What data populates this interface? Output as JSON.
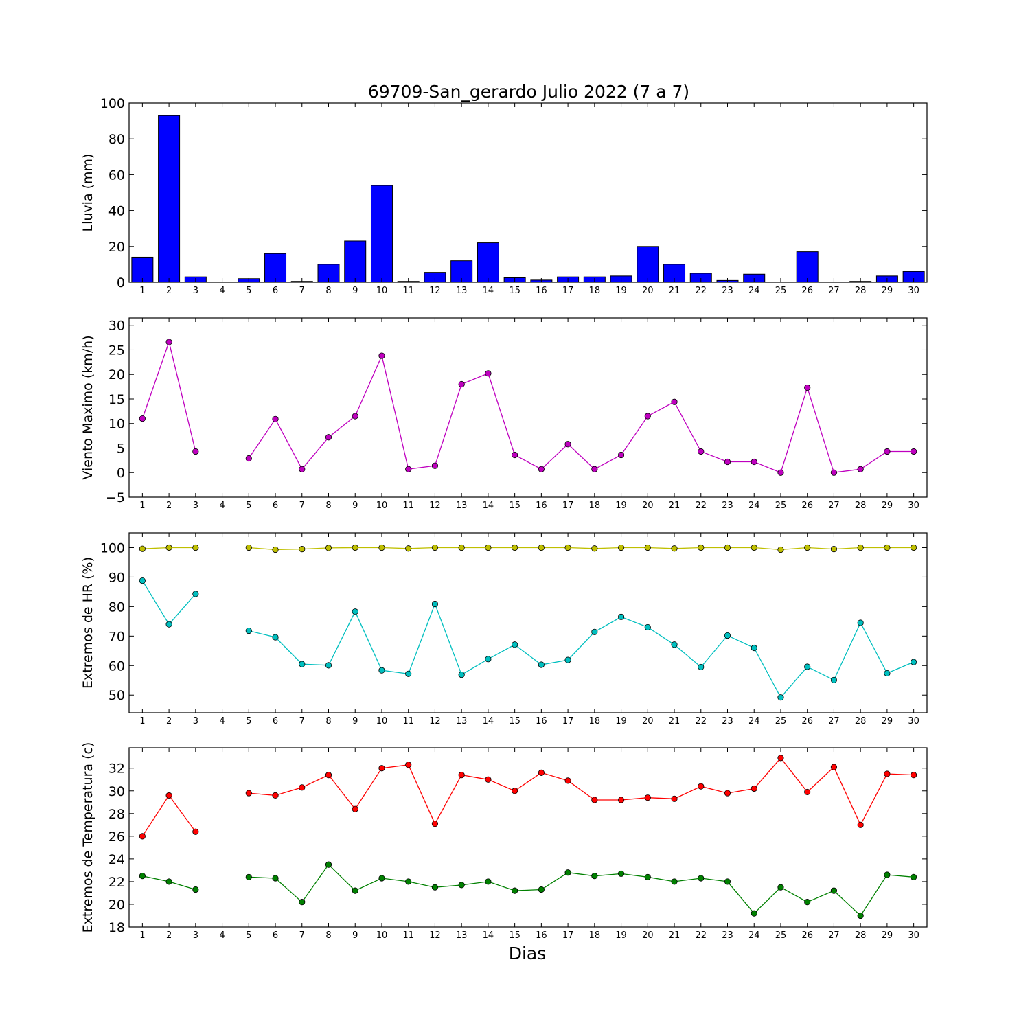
{
  "title": "69709-San_gerardo Julio 2022  (7 a 7)",
  "xlabel": "Dias",
  "days": [
    1,
    2,
    3,
    4,
    5,
    6,
    7,
    8,
    9,
    10,
    11,
    12,
    13,
    14,
    15,
    16,
    17,
    18,
    19,
    20,
    21,
    22,
    23,
    24,
    25,
    26,
    27,
    28,
    29,
    30
  ],
  "colors": {
    "rain": "#0000ff",
    "wind": "#bf00bf",
    "hr_max": "#bfbf00",
    "hr_min": "#00bfbf",
    "t_max": "#ff0000",
    "t_min": "#008000"
  },
  "chart_data": [
    {
      "type": "bar",
      "ylabel": "Lluvia (mm)",
      "ylim": [
        0,
        100
      ],
      "yticks": [
        0,
        20,
        40,
        60,
        80,
        100
      ],
      "series": [
        {
          "values": [
            14,
            93,
            3,
            0,
            2,
            16,
            0.5,
            10,
            23,
            54,
            0.5,
            5.5,
            12,
            22,
            2.5,
            1.2,
            3,
            3,
            3.5,
            20,
            10,
            5,
            1,
            4.5,
            0,
            17,
            0,
            0.5,
            3.5,
            6
          ]
        }
      ]
    },
    {
      "type": "line",
      "ylabel": "Viento Maximo (km/h)",
      "ylim": [
        -5,
        31.5
      ],
      "yticks": [
        -5,
        0,
        5,
        10,
        15,
        20,
        25,
        30
      ],
      "series": [
        {
          "values": [
            11,
            26.6,
            4.3,
            null,
            2.9,
            10.9,
            0.7,
            7.2,
            11.5,
            23.8,
            0.7,
            1.4,
            18,
            20.2,
            3.6,
            0.7,
            5.8,
            0.7,
            3.6,
            11.5,
            14.4,
            4.3,
            2.2,
            2.2,
            0,
            17.3,
            0,
            0.7,
            4.3,
            4.3
          ]
        }
      ]
    },
    {
      "type": "line",
      "ylabel": "Extremos de HR (%)",
      "ylim": [
        44,
        105
      ],
      "yticks": [
        50,
        60,
        70,
        80,
        90,
        100
      ],
      "series": [
        {
          "values": [
            99.6,
            100,
            100,
            null,
            100,
            99.3,
            99.5,
            99.9,
            100,
            100,
            99.7,
            100,
            100,
            100,
            100,
            100,
            100,
            99.7,
            100,
            100,
            99.7,
            100,
            100,
            100,
            99.3,
            100,
            99.5,
            100,
            100,
            100
          ]
        },
        {
          "values": [
            88.8,
            74,
            84.3,
            null,
            71.8,
            69.6,
            60.5,
            60.1,
            78.3,
            58.4,
            57.2,
            80.9,
            56.9,
            62.2,
            67.1,
            60.3,
            61.9,
            71.4,
            76.5,
            73,
            67.1,
            59.5,
            70.2,
            66,
            49.2,
            59.6,
            55.1,
            74.5,
            57.4,
            61.2
          ]
        }
      ]
    },
    {
      "type": "line",
      "ylabel": "Extremos de Temperatura (c)",
      "ylim": [
        18,
        33.8
      ],
      "yticks": [
        18,
        20,
        22,
        24,
        26,
        28,
        30,
        32
      ],
      "series": [
        {
          "values": [
            26,
            29.6,
            26.4,
            null,
            29.8,
            29.6,
            30.3,
            31.4,
            28.4,
            32,
            32.3,
            27.1,
            31.4,
            31,
            30,
            31.6,
            30.9,
            29.2,
            29.2,
            29.4,
            29.3,
            30.4,
            29.8,
            30.2,
            32.9,
            29.9,
            32.1,
            27,
            31.5,
            31.4
          ]
        },
        {
          "values": [
            22.5,
            22,
            21.3,
            null,
            22.4,
            22.3,
            20.2,
            23.5,
            21.2,
            22.3,
            22,
            21.5,
            21.7,
            22,
            21.2,
            21.3,
            22.8,
            22.5,
            22.7,
            22.4,
            22,
            22.3,
            22,
            19.2,
            21.5,
            20.2,
            21.2,
            19,
            22.6,
            22.4
          ]
        }
      ]
    }
  ]
}
